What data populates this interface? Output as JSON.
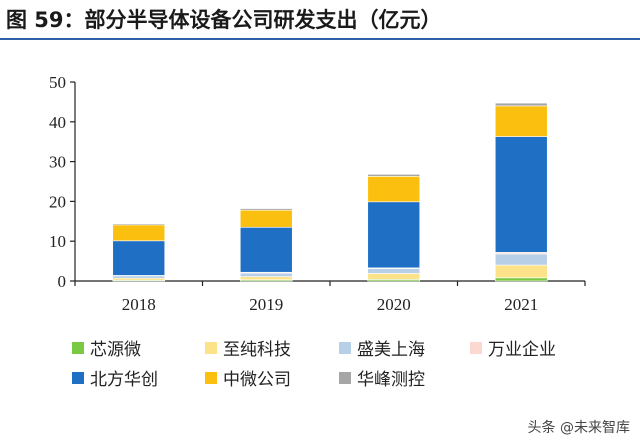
{
  "header": {
    "title": "图 59：部分半导体设备公司研发支出（亿元）"
  },
  "watermark": "头条 @未来智库",
  "chart_data": {
    "type": "bar",
    "stacked": true,
    "categories": [
      "2018",
      "2019",
      "2020",
      "2021"
    ],
    "ylim": [
      0,
      50
    ],
    "yticks": [
      0,
      10,
      20,
      30,
      40,
      50
    ],
    "grid": false,
    "legend_position": "bottom",
    "series": [
      {
        "name": "芯源微",
        "color": "#7ac943",
        "values": [
          0.2,
          0.3,
          0.4,
          0.8
        ]
      },
      {
        "name": "至纯科技",
        "color": "#fce38a",
        "values": [
          0.5,
          0.8,
          1.5,
          3.2
        ]
      },
      {
        "name": "盛美上海",
        "color": "#b8cfe8",
        "values": [
          0.6,
          0.9,
          1.2,
          2.8
        ]
      },
      {
        "name": "万业企业",
        "color": "#fbd9d0",
        "values": [
          0.1,
          0.2,
          0.2,
          0.4
        ]
      },
      {
        "name": "北方华创",
        "color": "#1f6fc5",
        "values": [
          8.7,
          11.3,
          16.6,
          29.1
        ]
      },
      {
        "name": "中微公司",
        "color": "#fbbf0f",
        "values": [
          4.0,
          4.3,
          6.4,
          7.7
        ]
      },
      {
        "name": "华峰测控",
        "color": "#a6a6a6",
        "values": [
          0.3,
          0.4,
          0.5,
          0.7
        ]
      }
    ]
  }
}
